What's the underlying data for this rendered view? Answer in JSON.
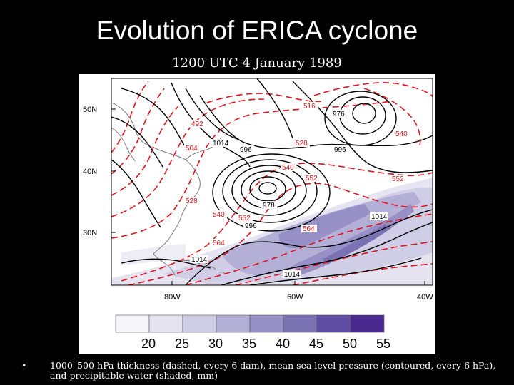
{
  "title": "Evolution of ERICA cyclone",
  "subtitle": "1200 UTC 4 January 1989",
  "map": {
    "lat_labels": [
      "50N",
      "40N",
      "30N"
    ],
    "lon_labels": [
      "80W",
      "60W",
      "40W"
    ],
    "thickness_labels": [
      "516",
      "492",
      "504",
      "528",
      "540",
      "552",
      "552",
      "540",
      "528",
      "540",
      "552",
      "564",
      "564"
    ],
    "pressure_labels": [
      "976",
      "1014",
      "996",
      "996",
      "978",
      "996",
      "1014",
      "1014",
      "1014"
    ],
    "colors": {
      "thickness": "#e0141e",
      "pressure": "#000000",
      "coast": "#7a7a7a"
    }
  },
  "colorbar": {
    "labels": [
      "20",
      "25",
      "30",
      "35",
      "40",
      "45",
      "50",
      "55"
    ],
    "colors": [
      "#f7f6fb",
      "#e6e4f1",
      "#d0cde6",
      "#b4afd6",
      "#9690c6",
      "#7b72b4",
      "#5f4ea3",
      "#4a2a8e"
    ],
    "unit": "mm"
  },
  "caption": {
    "bullet": "•",
    "text": "1000–500-hPa thickness (dashed, every 6 dam), mean sea level pressure (contoured, every 6 hPa), and precipitable water (shaded, mm)"
  }
}
